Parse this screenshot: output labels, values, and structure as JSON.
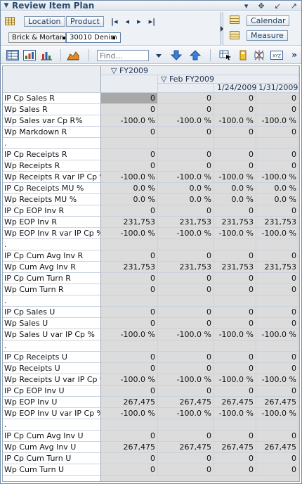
{
  "window": {
    "title": "Review Item Plan"
  },
  "pivot": {
    "buttons": [
      "Location",
      "Product"
    ],
    "members": [
      "Brick & Mortar",
      "30010 Denim"
    ],
    "right_buttons": [
      "Calendar",
      "Measure"
    ]
  },
  "toolbar": {
    "find_placeholder": "Find..."
  },
  "columns": [
    {
      "label": "▽ FY2009"
    },
    {
      "label": "▽ Feb FY2009"
    },
    {
      "label": "1/24/2009"
    },
    {
      "label": "1/31/2009"
    }
  ],
  "rows": [
    {
      "label": "IP Cp Sales R",
      "values": [
        "0",
        "0",
        "0",
        "0"
      ]
    },
    {
      "label": "Wp Sales R",
      "values": [
        "0",
        "0",
        "0",
        "0"
      ]
    },
    {
      "label": "Wp Sales var Cp R%",
      "values": [
        "-100.0 %",
        "-100.0 %",
        "-100.0 %",
        "-100.0 %"
      ]
    },
    {
      "label": "Wp Markdown R",
      "values": [
        "0",
        "0",
        "0",
        "0"
      ]
    },
    {
      "label": ".",
      "values": [
        "",
        "",
        "",
        ""
      ]
    },
    {
      "label": "IP Cp Receipts R",
      "values": [
        "0",
        "0",
        "0",
        "0"
      ]
    },
    {
      "label": "Wp Receipts R",
      "values": [
        "0",
        "0",
        "0",
        "0"
      ]
    },
    {
      "label": "Wp Receipts R var IP Cp %",
      "values": [
        "-100.0 %",
        "-100.0 %",
        "-100.0 %",
        "-100.0 %"
      ]
    },
    {
      "label": "IP Cp Receipts MU %",
      "values": [
        "0.0 %",
        "0.0 %",
        "0.0 %",
        "0.0 %"
      ]
    },
    {
      "label": "Wp Receipts MU %",
      "values": [
        "0.0 %",
        "0.0 %",
        "0.0 %",
        "0.0 %"
      ]
    },
    {
      "label": "IP Cp EOP Inv R",
      "values": [
        "0",
        "0",
        "0",
        "0"
      ]
    },
    {
      "label": "Wp EOP Inv R",
      "values": [
        "231,753",
        "231,753",
        "231,753",
        "231,753"
      ]
    },
    {
      "label": "Wp EOP Inv R var IP Cp %",
      "values": [
        "-100.0 %",
        "-100.0 %",
        "-100.0 %",
        "-100.0 %"
      ]
    },
    {
      "label": ".",
      "values": [
        "",
        "",
        "",
        ""
      ]
    },
    {
      "label": "IP Cp Cum Avg Inv R",
      "values": [
        "0",
        "0",
        "0",
        "0"
      ]
    },
    {
      "label": "Wp Cum Avg Inv R",
      "values": [
        "231,753",
        "231,753",
        "231,753",
        "231,753"
      ]
    },
    {
      "label": "IP Cp Cum Turn R",
      "values": [
        "0",
        "0",
        "0",
        "0"
      ]
    },
    {
      "label": "Wp Cum Turn R",
      "values": [
        "0",
        "0",
        "0",
        "0"
      ]
    },
    {
      "label": ".",
      "values": [
        "",
        "",
        "",
        ""
      ]
    },
    {
      "label": "IP Cp Sales U",
      "values": [
        "0",
        "0",
        "0",
        "0"
      ]
    },
    {
      "label": "Wp Sales U",
      "values": [
        "0",
        "0",
        "0",
        "0"
      ]
    },
    {
      "label": "Wp Sales U var IP Cp %",
      "values": [
        "-100.0 %",
        "-100.0 %",
        "-100.0 %",
        "-100.0 %"
      ]
    },
    {
      "label": ".",
      "values": [
        "",
        "",
        "",
        ""
      ]
    },
    {
      "label": "IP Cp Receipts U",
      "values": [
        "0",
        "0",
        "0",
        "0"
      ]
    },
    {
      "label": "Wp Receipts U",
      "values": [
        "0",
        "0",
        "0",
        "0"
      ]
    },
    {
      "label": "Wp Receipts U var IP Cp %",
      "values": [
        "-100.0 %",
        "-100.0 %",
        "-100.0 %",
        "-100.0 %"
      ]
    },
    {
      "label": "IP Cp EOP Inv U",
      "values": [
        "0",
        "0",
        "0",
        "0"
      ]
    },
    {
      "label": "Wp EOP Inv U",
      "values": [
        "267,475",
        "267,475",
        "267,475",
        "267,475"
      ]
    },
    {
      "label": "Wp EOP Inv U var IP Cp %",
      "values": [
        "-100.0 %",
        "-100.0 %",
        "-100.0 %",
        "-100.0 %"
      ]
    },
    {
      "label": ".",
      "values": [
        "",
        "",
        "",
        ""
      ]
    },
    {
      "label": "IP Cp Cum Avg Inv U",
      "values": [
        "0",
        "0",
        "0",
        "0"
      ]
    },
    {
      "label": "Wp Cum Avg Inv U",
      "values": [
        "267,475",
        "267,475",
        "267,475",
        "267,475"
      ]
    },
    {
      "label": "IP Cp Cum Turn U",
      "values": [
        "0",
        "0",
        "0",
        "0"
      ]
    },
    {
      "label": "Wp Cum Turn U",
      "values": [
        "0",
        "0",
        "0",
        "0"
      ]
    }
  ]
}
